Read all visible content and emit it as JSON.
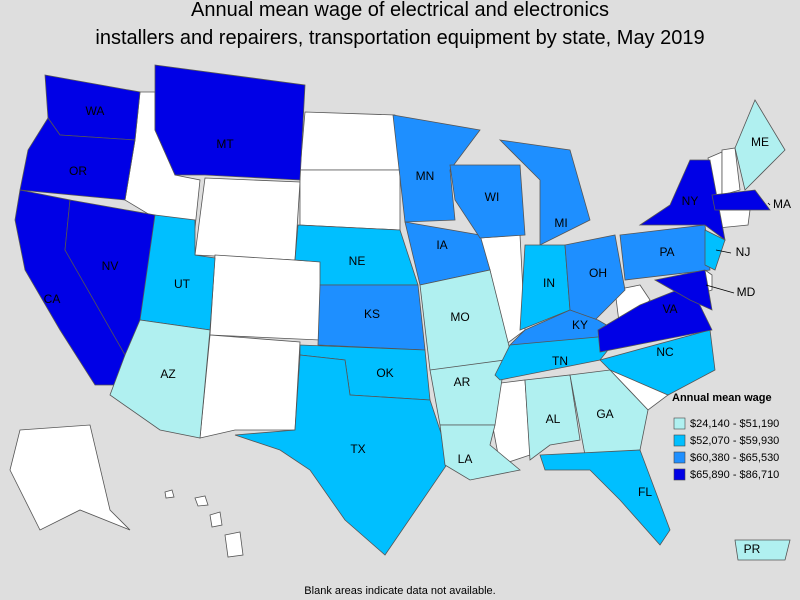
{
  "title_lines": [
    "Annual mean wage of electrical and electronics",
    "installers and repairers, transportation equipment by state, May 2019"
  ],
  "states": [
    {
      "label": "WA",
      "color": "#0000e6"
    },
    {
      "label": "OR",
      "color": "#0000e6"
    },
    {
      "label": "CA",
      "color": "#0000e6"
    },
    {
      "label": "NV",
      "color": "#0000e6"
    },
    {
      "label": "MT",
      "color": "#0000e6"
    },
    {
      "label": "UT",
      "color": "#00bfff"
    },
    {
      "label": "AZ",
      "color": "#b0f0f0"
    },
    {
      "label": "NE",
      "color": "#00bfff"
    },
    {
      "label": "KS",
      "color": "#1e8fff"
    },
    {
      "label": "OK",
      "color": "#00bfff"
    },
    {
      "label": "TX",
      "color": "#00bfff"
    },
    {
      "label": "MN",
      "color": "#1e8fff"
    },
    {
      "label": "IA",
      "color": "#1e8fff"
    },
    {
      "label": "MO",
      "color": "#b0f0f0"
    },
    {
      "label": "AR",
      "color": "#b0f0f0"
    },
    {
      "label": "LA",
      "color": "#b0f0f0"
    },
    {
      "label": "WI",
      "color": "#1e8fff"
    },
    {
      "label": "MI",
      "color": "#1e8fff"
    },
    {
      "label": "IN",
      "color": "#00bfff"
    },
    {
      "label": "OH",
      "color": "#1e8fff"
    },
    {
      "label": "KY",
      "color": "#1e8fff"
    },
    {
      "label": "TN",
      "color": "#00bfff"
    },
    {
      "label": "AL",
      "color": "#b0f0f0"
    },
    {
      "label": "GA",
      "color": "#b0f0f0"
    },
    {
      "label": "FL",
      "color": "#00bfff"
    },
    {
      "label": "NC",
      "color": "#00bfff"
    },
    {
      "label": "VA",
      "color": "#0000e6"
    },
    {
      "label": "PA",
      "color": "#1e8fff"
    },
    {
      "label": "NY",
      "color": "#0000e6"
    },
    {
      "label": "MA",
      "color": "#0000e6"
    },
    {
      "label": "NJ",
      "color": "#00bfff"
    },
    {
      "label": "MD",
      "color": "#0000e6"
    },
    {
      "label": "ME",
      "color": "#b0f0f0"
    },
    {
      "label": "PR",
      "color": "#b0f0f0"
    }
  ],
  "legend": {
    "title": "Annual mean wage",
    "items": [
      {
        "label": "$24,140 - $51,190",
        "color": "#b0f0f0"
      },
      {
        "label": "$52,070 - $59,930",
        "color": "#00bfff"
      },
      {
        "label": "$60,380 - $65,530",
        "color": "#1e8fff"
      },
      {
        "label": "$65,890 - $86,710",
        "color": "#0000e6"
      }
    ]
  },
  "footnote": "Blank areas indicate data not available."
}
